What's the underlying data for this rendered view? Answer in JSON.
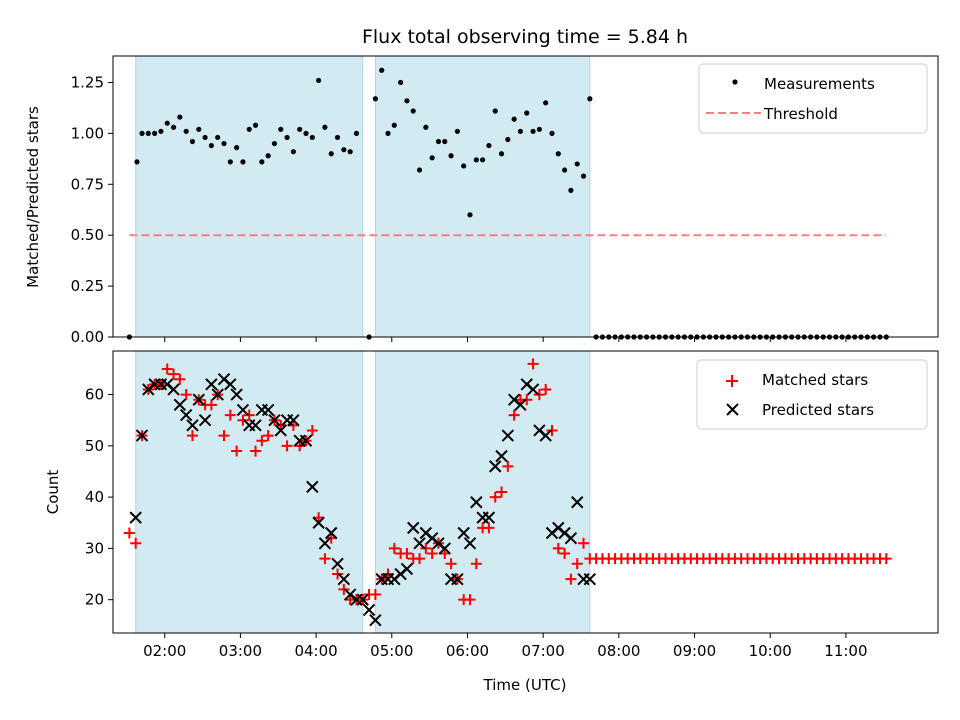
{
  "chart_data": {
    "title": "Flux total observing time = 5.84 h",
    "colors": {
      "span": "#add8e6",
      "threshold": "#ff7f7f",
      "matched": "#ff0000",
      "predicted": "#000000",
      "measure": "#000000"
    },
    "xlabel": "Time (UTC)",
    "x_ticks": [
      "02:00",
      "03:00",
      "04:00",
      "05:00",
      "06:00",
      "07:00",
      "08:00",
      "09:00",
      "10:00",
      "11:00"
    ],
    "xlim": [
      "01:19",
      "12:13"
    ],
    "spans": [
      [
        "01:37",
        "04:37"
      ],
      [
        "04:47",
        "07:37"
      ]
    ],
    "panels": [
      {
        "type": "scatter",
        "ylabel": "Matched/Predicted stars",
        "ylim": [
          0,
          1.38
        ],
        "y_ticks": [
          "0.00",
          "0.25",
          "0.50",
          "0.75",
          "1.00",
          "1.25"
        ],
        "legend": {
          "placement": "upper right",
          "entries": [
            "Measurements",
            "Threshold"
          ]
        },
        "threshold": {
          "value": 0.5,
          "x_start": "01:32",
          "x_end": "11:32"
        },
        "measurements": {
          "x": [
            "01:32",
            "01:38",
            "01:42",
            "01:47",
            "01:52",
            "01:57",
            "02:02",
            "02:07",
            "02:12",
            "02:17",
            "02:22",
            "02:27",
            "02:32",
            "02:37",
            "02:42",
            "02:47",
            "02:52",
            "02:57",
            "03:02",
            "03:07",
            "03:12",
            "03:17",
            "03:22",
            "03:27",
            "03:32",
            "03:37",
            "03:42",
            "03:47",
            "03:52",
            "03:57",
            "04:02",
            "04:07",
            "04:12",
            "04:17",
            "04:22",
            "04:27",
            "04:32",
            "04:42",
            "04:47",
            "04:52",
            "04:57",
            "05:02",
            "05:07",
            "05:12",
            "05:17",
            "05:22",
            "05:27",
            "05:32",
            "05:37",
            "05:42",
            "05:47",
            "05:52",
            "05:57",
            "06:02",
            "06:07",
            "06:12",
            "06:17",
            "06:22",
            "06:27",
            "06:32",
            "06:37",
            "06:42",
            "06:47",
            "06:52",
            "06:57",
            "07:02",
            "07:07",
            "07:12",
            "07:17",
            "07:22",
            "07:27",
            "07:32",
            "07:37",
            "07:42",
            "07:47",
            "07:52",
            "07:57",
            "08:02",
            "08:07",
            "08:12",
            "08:17",
            "08:22",
            "08:27",
            "08:32",
            "08:37",
            "08:42",
            "08:47",
            "08:52",
            "08:57",
            "09:02",
            "09:07",
            "09:12",
            "09:17",
            "09:22",
            "09:27",
            "09:32",
            "09:37",
            "09:42",
            "09:47",
            "09:52",
            "09:57",
            "10:02",
            "10:07",
            "10:12",
            "10:17",
            "10:22",
            "10:27",
            "10:32",
            "10:37",
            "10:42",
            "10:47",
            "10:52",
            "10:57",
            "11:02",
            "11:07",
            "11:12",
            "11:17",
            "11:22",
            "11:27",
            "11:32"
          ],
          "y": [
            0.0,
            0.86,
            1.0,
            1.0,
            1.0,
            1.01,
            1.05,
            1.03,
            1.08,
            1.01,
            0.96,
            1.02,
            0.98,
            0.94,
            0.98,
            0.95,
            0.86,
            0.93,
            0.86,
            1.02,
            1.04,
            0.86,
            0.89,
            0.95,
            1.02,
            0.98,
            0.91,
            1.02,
            1.0,
            0.98,
            1.26,
            1.03,
            0.9,
            0.98,
            0.92,
            0.91,
            1.0,
            0.0,
            1.17,
            1.31,
            1.0,
            1.04,
            1.25,
            1.16,
            1.11,
            0.82,
            1.03,
            0.88,
            0.96,
            0.96,
            0.89,
            1.01,
            0.84,
            0.6,
            0.87,
            0.87,
            0.94,
            1.11,
            0.9,
            0.97,
            1.07,
            1.01,
            1.1,
            1.01,
            1.02,
            1.15,
            1.0,
            0.9,
            0.82,
            0.72,
            0.85,
            0.79,
            1.17,
            0.0,
            0.0,
            0.0,
            0.0,
            0.0,
            0.0,
            0.0,
            0.0,
            0.0,
            0.0,
            0.0,
            0.0,
            0.0,
            0.0,
            0.0,
            0.0,
            0.0,
            0.0,
            0.0,
            0.0,
            0.0,
            0.0,
            0.0,
            0.0,
            0.0,
            0.0,
            0.0,
            0.0,
            0.0,
            0.0,
            0.0,
            0.0,
            0.0,
            0.0,
            0.0,
            0.0,
            0.0,
            0.0,
            0.0,
            0.0,
            0.0,
            0.0,
            0.0,
            0.0,
            0.0,
            0.0,
            0.0
          ]
        }
      },
      {
        "type": "scatter",
        "ylabel": "Count",
        "ylim": [
          13.5,
          68.5
        ],
        "y_ticks": [
          "20",
          "30",
          "40",
          "50",
          "60"
        ],
        "legend": {
          "placement": "upper right",
          "entries": [
            "Matched stars",
            "Predicted stars"
          ]
        },
        "matched": {
          "x": [
            "01:32",
            "01:37",
            "01:42",
            "01:47",
            "01:52",
            "01:57",
            "02:02",
            "02:07",
            "02:12",
            "02:17",
            "02:22",
            "02:27",
            "02:32",
            "02:37",
            "02:42",
            "02:47",
            "02:52",
            "02:57",
            "03:02",
            "03:07",
            "03:12",
            "03:17",
            "03:22",
            "03:27",
            "03:32",
            "03:37",
            "03:42",
            "03:47",
            "03:52",
            "03:57",
            "04:02",
            "04:07",
            "04:12",
            "04:17",
            "04:22",
            "04:27",
            "04:32",
            "04:37",
            "04:42",
            "04:47",
            "04:52",
            "04:57",
            "05:02",
            "05:07",
            "05:12",
            "05:17",
            "05:22",
            "05:27",
            "05:32",
            "05:37",
            "05:42",
            "05:47",
            "05:52",
            "05:57",
            "06:02",
            "06:07",
            "06:12",
            "06:17",
            "06:22",
            "06:27",
            "06:32",
            "06:37",
            "06:42",
            "06:47",
            "06:52",
            "06:57",
            "07:02",
            "07:07",
            "07:12",
            "07:17",
            "07:22",
            "07:27",
            "07:32",
            "07:37",
            "07:42",
            "07:47",
            "07:52",
            "07:57",
            "08:02",
            "08:07",
            "08:12",
            "08:17",
            "08:22",
            "08:27",
            "08:32",
            "08:37",
            "08:42",
            "08:47",
            "08:52",
            "08:57",
            "09:02",
            "09:07",
            "09:12",
            "09:17",
            "09:22",
            "09:27",
            "09:32",
            "09:37",
            "09:42",
            "09:47",
            "09:52",
            "09:57",
            "10:02",
            "10:07",
            "10:12",
            "10:17",
            "10:22",
            "10:27",
            "10:32",
            "10:37",
            "10:42",
            "10:47",
            "10:52",
            "10:57",
            "11:02",
            "11:07",
            "11:12",
            "11:17",
            "11:22",
            "11:27",
            "11:32"
          ],
          "y": [
            33,
            31,
            52,
            61,
            62,
            62,
            65,
            64,
            63,
            60,
            52,
            59,
            58,
            58,
            60,
            52,
            56,
            49,
            55,
            56,
            49,
            51,
            52,
            55,
            54,
            50,
            54,
            50,
            51,
            53,
            36,
            28,
            32,
            25,
            22,
            20,
            20,
            20,
            21,
            21,
            24,
            25,
            30,
            29,
            29,
            28,
            28,
            30,
            29,
            31,
            29,
            27,
            24,
            20,
            20,
            27,
            34,
            34,
            40,
            41,
            46,
            56,
            59,
            59,
            66,
            60,
            61,
            53,
            30,
            29,
            24,
            27,
            31,
            28,
            28,
            28,
            28,
            28,
            28,
            28,
            28,
            28,
            28,
            28,
            28,
            28,
            28,
            28,
            28,
            28,
            28,
            28,
            28,
            28,
            28,
            28,
            28,
            28,
            28,
            28,
            28,
            28,
            28,
            28,
            28,
            28,
            28,
            28,
            28,
            28,
            28,
            28,
            28,
            28,
            28,
            28,
            28,
            28,
            28,
            28,
            28
          ]
        },
        "predicted": {
          "x": [
            "01:37",
            "01:42",
            "01:47",
            "01:52",
            "01:57",
            "02:02",
            "02:07",
            "02:12",
            "02:17",
            "02:22",
            "02:27",
            "02:32",
            "02:37",
            "02:42",
            "02:47",
            "02:52",
            "02:57",
            "03:02",
            "03:07",
            "03:12",
            "03:17",
            "03:22",
            "03:27",
            "03:32",
            "03:37",
            "03:42",
            "03:47",
            "03:52",
            "03:57",
            "04:02",
            "04:07",
            "04:12",
            "04:17",
            "04:22",
            "04:27",
            "04:32",
            "04:37",
            "04:42",
            "04:47",
            "04:52",
            "04:57",
            "05:02",
            "05:07",
            "05:12",
            "05:17",
            "05:22",
            "05:27",
            "05:32",
            "05:37",
            "05:42",
            "05:47",
            "05:52",
            "05:57",
            "06:02",
            "06:07",
            "06:12",
            "06:17",
            "06:22",
            "06:27",
            "06:32",
            "06:37",
            "06:42",
            "06:47",
            "06:52",
            "06:57",
            "07:02",
            "07:07",
            "07:12",
            "07:17",
            "07:22",
            "07:27",
            "07:32",
            "07:37"
          ],
          "y": [
            36,
            52,
            61,
            62,
            62,
            62,
            61,
            58,
            56,
            54,
            59,
            55,
            62,
            60,
            63,
            62,
            60,
            57,
            54,
            54,
            57,
            57,
            55,
            53,
            55,
            55,
            51,
            51,
            42,
            35,
            31,
            33,
            27,
            24,
            21,
            20,
            20,
            18,
            16,
            24,
            24,
            24,
            25,
            26,
            34,
            31,
            33,
            32,
            31,
            30,
            24,
            24,
            33,
            31,
            39,
            36,
            36,
            46,
            48,
            52,
            59,
            58,
            62,
            61,
            53,
            52,
            33,
            34,
            33,
            32,
            39,
            24,
            24
          ]
        }
      }
    ]
  }
}
